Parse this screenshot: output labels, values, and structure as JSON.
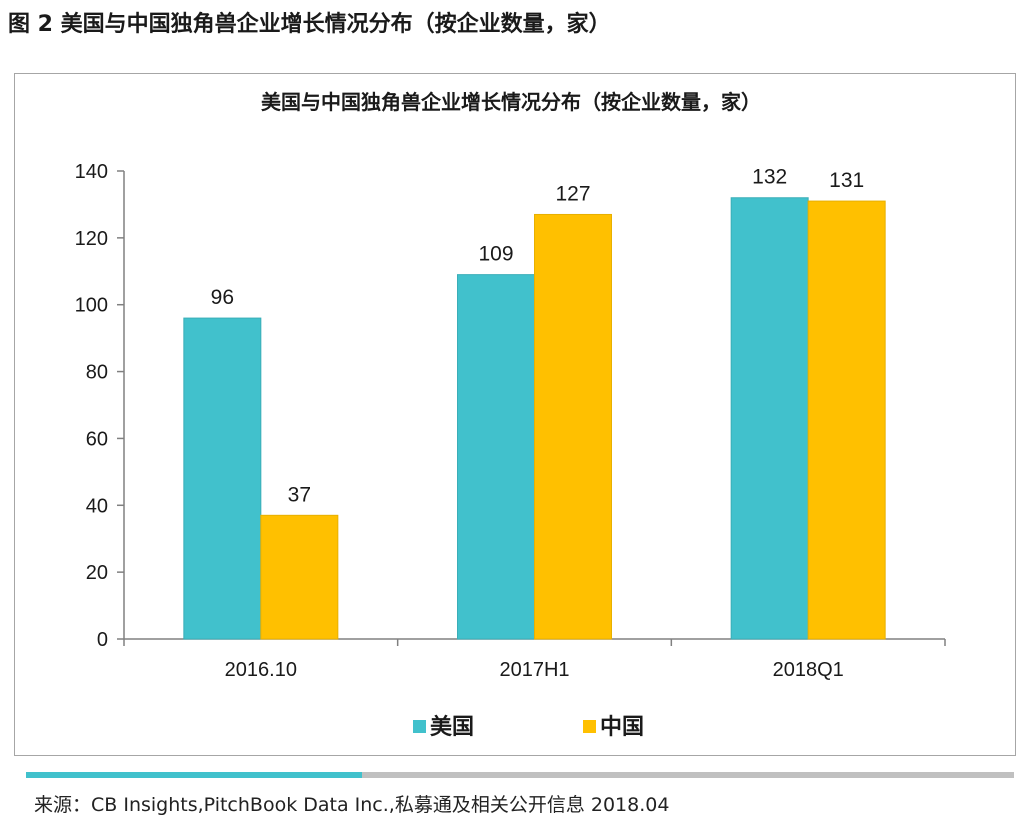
{
  "figure_caption": "图 2 美国与中国独角兽企业增长情况分布（按企业数量，家）",
  "source_text": "来源：CB Insights,PitchBook Data Inc.,私募通及相关公开信息 2018.04",
  "progress_fraction": 0.34,
  "colors": {
    "series_us": "#41c1cc",
    "series_cn": "#ffc000",
    "progress": "#41c1cc",
    "track": "#c0c0c0"
  },
  "chart_data": {
    "type": "bar",
    "title": "美国与中国独角兽企业增长情况分布（按企业数量，家）",
    "categories": [
      "2016.10",
      "2017H1",
      "2018Q1"
    ],
    "series": [
      {
        "name": "美国",
        "values": [
          96,
          109,
          132
        ],
        "color": "#41c1cc"
      },
      {
        "name": "中国",
        "values": [
          37,
          127,
          131
        ],
        "color": "#ffc000"
      }
    ],
    "ylim": [
      0,
      140
    ],
    "yticks": [
      0,
      20,
      40,
      60,
      80,
      100,
      120,
      140
    ],
    "grid": false,
    "legend_position": "bottom"
  }
}
